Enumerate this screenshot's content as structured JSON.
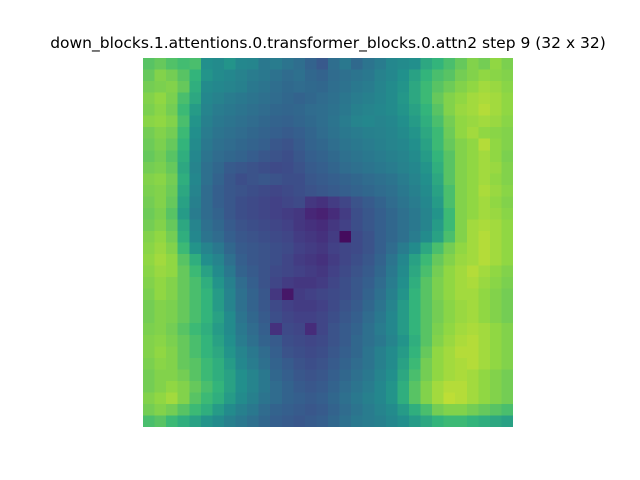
{
  "chart_data": {
    "type": "heatmap",
    "title": "down_blocks.1.attentions.0.transformer_blocks.0.attn2 step 9 (32 x 32)",
    "rows": 32,
    "cols": 32,
    "colormap": "viridis",
    "axes_visible": false,
    "value_range": [
      0,
      1
    ],
    "values": [
      [
        0.8,
        0.82,
        0.79,
        0.77,
        0.78,
        0.62,
        0.6,
        0.64,
        0.58,
        0.57,
        0.5,
        0.52,
        0.48,
        0.45,
        0.4,
        0.35,
        0.45,
        0.5,
        0.43,
        0.48,
        0.52,
        0.58,
        0.6,
        0.62,
        0.7,
        0.74,
        0.78,
        0.82,
        0.86,
        0.84,
        0.88,
        0.85
      ],
      [
        0.82,
        0.86,
        0.84,
        0.8,
        0.74,
        0.64,
        0.6,
        0.58,
        0.55,
        0.52,
        0.5,
        0.47,
        0.44,
        0.46,
        0.42,
        0.4,
        0.44,
        0.46,
        0.48,
        0.5,
        0.55,
        0.58,
        0.63,
        0.68,
        0.74,
        0.78,
        0.8,
        0.84,
        0.86,
        0.88,
        0.87,
        0.86
      ],
      [
        0.84,
        0.85,
        0.86,
        0.82,
        0.72,
        0.6,
        0.58,
        0.56,
        0.54,
        0.5,
        0.48,
        0.45,
        0.43,
        0.44,
        0.43,
        0.42,
        0.45,
        0.47,
        0.5,
        0.52,
        0.56,
        0.6,
        0.64,
        0.7,
        0.76,
        0.8,
        0.83,
        0.86,
        0.88,
        0.9,
        0.89,
        0.87
      ],
      [
        0.86,
        0.88,
        0.85,
        0.78,
        0.7,
        0.58,
        0.55,
        0.52,
        0.5,
        0.48,
        0.46,
        0.44,
        0.42,
        0.4,
        0.42,
        0.44,
        0.46,
        0.49,
        0.52,
        0.54,
        0.57,
        0.6,
        0.65,
        0.7,
        0.76,
        0.82,
        0.86,
        0.88,
        0.9,
        0.91,
        0.9,
        0.88
      ],
      [
        0.85,
        0.87,
        0.84,
        0.76,
        0.66,
        0.56,
        0.52,
        0.5,
        0.48,
        0.46,
        0.44,
        0.42,
        0.41,
        0.42,
        0.44,
        0.45,
        0.47,
        0.5,
        0.54,
        0.56,
        0.58,
        0.6,
        0.64,
        0.68,
        0.74,
        0.8,
        0.86,
        0.89,
        0.9,
        0.92,
        0.9,
        0.88
      ],
      [
        0.87,
        0.88,
        0.86,
        0.78,
        0.64,
        0.54,
        0.5,
        0.48,
        0.46,
        0.44,
        0.42,
        0.4,
        0.39,
        0.41,
        0.43,
        0.45,
        0.48,
        0.52,
        0.56,
        0.58,
        0.56,
        0.58,
        0.62,
        0.66,
        0.72,
        0.78,
        0.84,
        0.88,
        0.89,
        0.9,
        0.89,
        0.87
      ],
      [
        0.84,
        0.86,
        0.84,
        0.76,
        0.62,
        0.52,
        0.48,
        0.46,
        0.44,
        0.42,
        0.4,
        0.38,
        0.36,
        0.38,
        0.41,
        0.44,
        0.47,
        0.5,
        0.52,
        0.54,
        0.55,
        0.57,
        0.6,
        0.64,
        0.7,
        0.76,
        0.83,
        0.88,
        0.9,
        0.88,
        0.87,
        0.86
      ],
      [
        0.83,
        0.85,
        0.82,
        0.74,
        0.6,
        0.5,
        0.46,
        0.44,
        0.42,
        0.4,
        0.38,
        0.34,
        0.32,
        0.36,
        0.4,
        0.42,
        0.45,
        0.48,
        0.5,
        0.52,
        0.54,
        0.56,
        0.58,
        0.62,
        0.68,
        0.76,
        0.82,
        0.86,
        0.88,
        0.92,
        0.88,
        0.86
      ],
      [
        0.82,
        0.84,
        0.8,
        0.72,
        0.58,
        0.48,
        0.44,
        0.42,
        0.4,
        0.37,
        0.34,
        0.32,
        0.3,
        0.34,
        0.38,
        0.4,
        0.43,
        0.46,
        0.48,
        0.5,
        0.52,
        0.54,
        0.56,
        0.6,
        0.66,
        0.74,
        0.8,
        0.86,
        0.88,
        0.9,
        0.88,
        0.85
      ],
      [
        0.84,
        0.85,
        0.82,
        0.7,
        0.56,
        0.46,
        0.42,
        0.36,
        0.34,
        0.32,
        0.3,
        0.28,
        0.29,
        0.32,
        0.36,
        0.38,
        0.41,
        0.44,
        0.46,
        0.48,
        0.5,
        0.52,
        0.55,
        0.58,
        0.64,
        0.72,
        0.8,
        0.86,
        0.88,
        0.9,
        0.89,
        0.86
      ],
      [
        0.86,
        0.87,
        0.84,
        0.72,
        0.58,
        0.46,
        0.4,
        0.34,
        0.3,
        0.32,
        0.34,
        0.32,
        0.3,
        0.3,
        0.34,
        0.36,
        0.38,
        0.4,
        0.42,
        0.44,
        0.46,
        0.48,
        0.52,
        0.56,
        0.62,
        0.7,
        0.8,
        0.86,
        0.88,
        0.9,
        0.88,
        0.86
      ],
      [
        0.85,
        0.86,
        0.83,
        0.7,
        0.56,
        0.44,
        0.38,
        0.34,
        0.32,
        0.3,
        0.28,
        0.26,
        0.28,
        0.3,
        0.32,
        0.34,
        0.36,
        0.38,
        0.4,
        0.42,
        0.44,
        0.46,
        0.5,
        0.54,
        0.6,
        0.68,
        0.78,
        0.86,
        0.88,
        0.91,
        0.89,
        0.87
      ],
      [
        0.84,
        0.86,
        0.82,
        0.68,
        0.54,
        0.44,
        0.38,
        0.34,
        0.3,
        0.28,
        0.26,
        0.24,
        0.26,
        0.28,
        0.2,
        0.18,
        0.22,
        0.26,
        0.32,
        0.36,
        0.4,
        0.44,
        0.48,
        0.52,
        0.58,
        0.66,
        0.78,
        0.86,
        0.88,
        0.9,
        0.88,
        0.86
      ],
      [
        0.83,
        0.85,
        0.8,
        0.66,
        0.52,
        0.44,
        0.4,
        0.34,
        0.3,
        0.28,
        0.26,
        0.24,
        0.22,
        0.2,
        0.14,
        0.12,
        0.16,
        0.22,
        0.3,
        0.34,
        0.38,
        0.42,
        0.46,
        0.5,
        0.56,
        0.64,
        0.76,
        0.86,
        0.88,
        0.9,
        0.89,
        0.87
      ],
      [
        0.84,
        0.86,
        0.82,
        0.7,
        0.56,
        0.46,
        0.42,
        0.36,
        0.32,
        0.3,
        0.28,
        0.26,
        0.24,
        0.2,
        0.18,
        0.16,
        0.2,
        0.24,
        0.3,
        0.34,
        0.38,
        0.42,
        0.46,
        0.5,
        0.56,
        0.66,
        0.76,
        0.86,
        0.9,
        0.91,
        0.9,
        0.88
      ],
      [
        0.86,
        0.88,
        0.84,
        0.72,
        0.58,
        0.48,
        0.44,
        0.38,
        0.34,
        0.32,
        0.3,
        0.28,
        0.26,
        0.22,
        0.2,
        0.18,
        0.22,
        0.04,
        0.28,
        0.32,
        0.38,
        0.42,
        0.46,
        0.52,
        0.6,
        0.68,
        0.78,
        0.86,
        0.9,
        0.92,
        0.9,
        0.88
      ],
      [
        0.87,
        0.89,
        0.86,
        0.76,
        0.64,
        0.56,
        0.5,
        0.42,
        0.36,
        0.34,
        0.32,
        0.3,
        0.28,
        0.24,
        0.22,
        0.2,
        0.24,
        0.26,
        0.28,
        0.32,
        0.38,
        0.44,
        0.52,
        0.6,
        0.7,
        0.78,
        0.84,
        0.88,
        0.9,
        0.92,
        0.9,
        0.88
      ],
      [
        0.88,
        0.9,
        0.88,
        0.8,
        0.72,
        0.62,
        0.56,
        0.46,
        0.38,
        0.34,
        0.32,
        0.3,
        0.26,
        0.22,
        0.2,
        0.18,
        0.22,
        0.26,
        0.3,
        0.34,
        0.4,
        0.48,
        0.58,
        0.68,
        0.76,
        0.82,
        0.86,
        0.89,
        0.9,
        0.92,
        0.9,
        0.88
      ],
      [
        0.87,
        0.89,
        0.88,
        0.82,
        0.76,
        0.68,
        0.6,
        0.5,
        0.4,
        0.36,
        0.32,
        0.28,
        0.26,
        0.24,
        0.22,
        0.2,
        0.24,
        0.28,
        0.32,
        0.36,
        0.42,
        0.5,
        0.6,
        0.7,
        0.78,
        0.84,
        0.88,
        0.9,
        0.92,
        0.9,
        0.88,
        0.86
      ],
      [
        0.86,
        0.88,
        0.86,
        0.82,
        0.78,
        0.72,
        0.64,
        0.54,
        0.44,
        0.38,
        0.32,
        0.26,
        0.22,
        0.2,
        0.2,
        0.22,
        0.26,
        0.3,
        0.34,
        0.38,
        0.44,
        0.52,
        0.62,
        0.72,
        0.8,
        0.85,
        0.88,
        0.9,
        0.91,
        0.89,
        0.87,
        0.85
      ],
      [
        0.85,
        0.88,
        0.86,
        0.82,
        0.78,
        0.74,
        0.66,
        0.56,
        0.46,
        0.4,
        0.34,
        0.2,
        0.08,
        0.22,
        0.24,
        0.26,
        0.28,
        0.3,
        0.34,
        0.4,
        0.46,
        0.54,
        0.64,
        0.74,
        0.8,
        0.85,
        0.88,
        0.9,
        0.9,
        0.88,
        0.86,
        0.84
      ],
      [
        0.84,
        0.86,
        0.85,
        0.82,
        0.78,
        0.74,
        0.66,
        0.56,
        0.46,
        0.4,
        0.34,
        0.28,
        0.24,
        0.22,
        0.22,
        0.24,
        0.28,
        0.32,
        0.36,
        0.42,
        0.48,
        0.56,
        0.66,
        0.74,
        0.8,
        0.84,
        0.87,
        0.89,
        0.9,
        0.88,
        0.86,
        0.84
      ],
      [
        0.84,
        0.86,
        0.85,
        0.82,
        0.78,
        0.74,
        0.68,
        0.6,
        0.48,
        0.42,
        0.36,
        0.3,
        0.26,
        0.24,
        0.24,
        0.26,
        0.3,
        0.34,
        0.38,
        0.44,
        0.5,
        0.58,
        0.66,
        0.74,
        0.8,
        0.84,
        0.87,
        0.89,
        0.9,
        0.88,
        0.86,
        0.84
      ],
      [
        0.85,
        0.86,
        0.84,
        0.8,
        0.76,
        0.72,
        0.66,
        0.6,
        0.5,
        0.44,
        0.38,
        0.18,
        0.28,
        0.26,
        0.16,
        0.26,
        0.32,
        0.36,
        0.4,
        0.46,
        0.52,
        0.58,
        0.66,
        0.74,
        0.8,
        0.85,
        0.88,
        0.9,
        0.91,
        0.9,
        0.88,
        0.86
      ],
      [
        0.86,
        0.87,
        0.85,
        0.82,
        0.78,
        0.74,
        0.68,
        0.62,
        0.52,
        0.46,
        0.4,
        0.36,
        0.3,
        0.28,
        0.26,
        0.28,
        0.32,
        0.36,
        0.42,
        0.46,
        0.5,
        0.56,
        0.64,
        0.72,
        0.8,
        0.86,
        0.89,
        0.91,
        0.92,
        0.9,
        0.88,
        0.86
      ],
      [
        0.86,
        0.88,
        0.86,
        0.82,
        0.78,
        0.74,
        0.7,
        0.64,
        0.56,
        0.5,
        0.44,
        0.38,
        0.32,
        0.3,
        0.28,
        0.3,
        0.34,
        0.38,
        0.42,
        0.48,
        0.54,
        0.6,
        0.66,
        0.74,
        0.82,
        0.88,
        0.9,
        0.92,
        0.92,
        0.9,
        0.88,
        0.86
      ],
      [
        0.85,
        0.87,
        0.86,
        0.82,
        0.8,
        0.76,
        0.72,
        0.66,
        0.58,
        0.52,
        0.46,
        0.4,
        0.36,
        0.32,
        0.3,
        0.32,
        0.36,
        0.4,
        0.44,
        0.48,
        0.54,
        0.6,
        0.68,
        0.76,
        0.84,
        0.88,
        0.9,
        0.91,
        0.92,
        0.9,
        0.88,
        0.86
      ],
      [
        0.84,
        0.86,
        0.86,
        0.84,
        0.8,
        0.76,
        0.72,
        0.68,
        0.62,
        0.56,
        0.5,
        0.42,
        0.38,
        0.34,
        0.32,
        0.34,
        0.38,
        0.42,
        0.46,
        0.5,
        0.56,
        0.62,
        0.7,
        0.78,
        0.84,
        0.88,
        0.9,
        0.91,
        0.9,
        0.88,
        0.86,
        0.84
      ],
      [
        0.84,
        0.86,
        0.88,
        0.86,
        0.82,
        0.78,
        0.74,
        0.68,
        0.62,
        0.56,
        0.5,
        0.44,
        0.4,
        0.36,
        0.34,
        0.36,
        0.4,
        0.44,
        0.48,
        0.52,
        0.58,
        0.64,
        0.72,
        0.8,
        0.86,
        0.9,
        0.92,
        0.92,
        0.9,
        0.88,
        0.86,
        0.84
      ],
      [
        0.86,
        0.88,
        0.9,
        0.86,
        0.8,
        0.76,
        0.72,
        0.66,
        0.6,
        0.54,
        0.48,
        0.44,
        0.4,
        0.38,
        0.36,
        0.38,
        0.42,
        0.46,
        0.5,
        0.54,
        0.58,
        0.64,
        0.72,
        0.8,
        0.86,
        0.9,
        0.93,
        0.92,
        0.9,
        0.88,
        0.86,
        0.84
      ],
      [
        0.84,
        0.86,
        0.84,
        0.8,
        0.76,
        0.72,
        0.66,
        0.6,
        0.54,
        0.5,
        0.44,
        0.4,
        0.38,
        0.36,
        0.34,
        0.36,
        0.4,
        0.44,
        0.48,
        0.52,
        0.56,
        0.6,
        0.66,
        0.72,
        0.78,
        0.84,
        0.86,
        0.86,
        0.84,
        0.82,
        0.8,
        0.78
      ],
      [
        0.78,
        0.8,
        0.76,
        0.72,
        0.68,
        0.64,
        0.6,
        0.54,
        0.5,
        0.46,
        0.42,
        0.38,
        0.36,
        0.34,
        0.36,
        0.38,
        0.42,
        0.46,
        0.5,
        0.52,
        0.54,
        0.58,
        0.62,
        0.66,
        0.7,
        0.74,
        0.76,
        0.76,
        0.74,
        0.72,
        0.7,
        0.68
      ]
    ]
  }
}
